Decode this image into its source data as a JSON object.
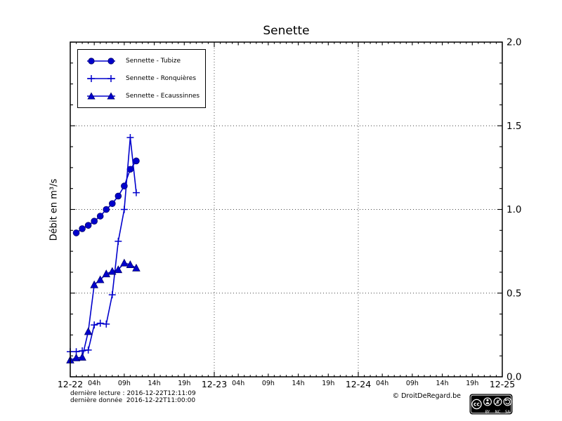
{
  "accent_color": "#0000cc",
  "title": "Senette",
  "y_axis_label": "Débit en m³/s",
  "footer": {
    "last_read": "dernière lecture : 2016-12-22T12:11:09",
    "last_data": "dernière donnée  2016-12-22T11:00:00",
    "copyright": "© DroitDeRegard.be",
    "license": {
      "cc": "cc",
      "by": "BY",
      "nc": "NC",
      "sa": "SA"
    }
  },
  "chart_data": {
    "type": "line",
    "title": "Senette",
    "ylabel": "Débit en m³/s",
    "x_axis": {
      "unit": "time",
      "span_hours": 72,
      "day_tick_labels": [
        "12-22",
        "12-23",
        "12-24",
        "12-25"
      ],
      "day_tick_hours": [
        0,
        24,
        48,
        72
      ],
      "intraday_hour_labels": [
        "04h",
        "09h",
        "14h",
        "19h"
      ],
      "intraday_hour_offsets": [
        4,
        9,
        14,
        19
      ]
    },
    "y_axis": {
      "min": 0,
      "max": 2,
      "major_step": 0.5,
      "minor_step": 0.125,
      "tick_labels": [
        "0.0",
        "0.5",
        "1.0",
        "1.5",
        "2.0"
      ],
      "labels_side": "right"
    },
    "grid": {
      "style": "dotted",
      "vertical_at_hours": [
        24,
        48
      ],
      "horizontal_at": [
        0.5,
        1.0,
        1.5
      ]
    },
    "legend_position": "upper-left",
    "series": [
      {
        "name": "Sennette - Tubize",
        "marker": "circle",
        "color": "#0000cc",
        "hours": [
          1,
          2,
          3,
          4,
          5,
          6,
          7,
          8,
          9,
          10,
          11
        ],
        "values": [
          0.86,
          0.885,
          0.905,
          0.93,
          0.96,
          1.0,
          1.035,
          1.08,
          1.14,
          1.24,
          1.29
        ]
      },
      {
        "name": "Sennette - Ronquières",
        "marker": "plus",
        "color": "#0000cc",
        "hours": [
          0,
          1,
          2,
          3,
          4,
          5,
          6,
          7,
          8,
          9,
          10,
          11
        ],
        "values": [
          0.15,
          0.15,
          0.155,
          0.16,
          0.31,
          0.32,
          0.315,
          0.49,
          0.81,
          1.0,
          1.43,
          1.1
        ]
      },
      {
        "name": "Sennette - Ecaussinnes",
        "marker": "triangle",
        "color": "#0000cc",
        "hours": [
          0,
          1,
          2,
          3,
          4,
          5,
          6,
          7,
          8,
          9,
          10,
          11
        ],
        "values": [
          0.1,
          0.113,
          0.117,
          0.27,
          0.55,
          0.58,
          0.615,
          0.63,
          0.64,
          0.68,
          0.67,
          0.65
        ]
      }
    ]
  }
}
